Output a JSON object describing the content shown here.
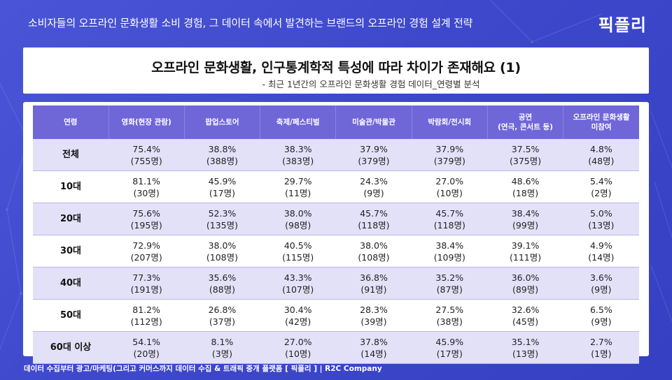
{
  "header": {
    "title": "소비자들의 오프라인 문화생활 소비 경험, 그 데이터 속에서 발견하는 브랜드의 오프라인 경험 설계 전략",
    "logo": "픽플리"
  },
  "slide": {
    "title": "오프라인 문화생활, 인구통계학적 특성에 따라 차이가 존재해요 (1)",
    "subtitle": "- 최근 1년간의 오프라인 문화생활 경험 데이터_연령별 분석"
  },
  "table": {
    "columns": [
      {
        "line1": "연령",
        "line2": ""
      },
      {
        "line1": "영화(현장 관람)",
        "line2": ""
      },
      {
        "line1": "팝업스토어",
        "line2": ""
      },
      {
        "line1": "축제/페스티벌",
        "line2": ""
      },
      {
        "line1": "미술관/박물관",
        "line2": ""
      },
      {
        "line1": "박람회/전시회",
        "line2": ""
      },
      {
        "line1": "공연",
        "line2": "(연극, 콘서트 등)"
      },
      {
        "line1": "오프라인 문화생활",
        "line2": "미참여"
      }
    ],
    "rows": [
      {
        "age": "전체",
        "cells": [
          {
            "pct": "75.4%",
            "cnt": "(755명)"
          },
          {
            "pct": "38.8%",
            "cnt": "(388명)"
          },
          {
            "pct": "38.3%",
            "cnt": "(383명)"
          },
          {
            "pct": "37.9%",
            "cnt": "(379명)"
          },
          {
            "pct": "37.9%",
            "cnt": "(379명)"
          },
          {
            "pct": "37.5%",
            "cnt": "(375명)"
          },
          {
            "pct": "4.8%",
            "cnt": "(48명)"
          }
        ]
      },
      {
        "age": "10대",
        "cells": [
          {
            "pct": "81.1%",
            "cnt": "(30명)"
          },
          {
            "pct": "45.9%",
            "cnt": "(17명)"
          },
          {
            "pct": "29.7%",
            "cnt": "(11명)"
          },
          {
            "pct": "24.3%",
            "cnt": "(9명)"
          },
          {
            "pct": "27.0%",
            "cnt": "(10명)"
          },
          {
            "pct": "48.6%",
            "cnt": "(18명)"
          },
          {
            "pct": "5.4%",
            "cnt": "(2명)"
          }
        ]
      },
      {
        "age": "20대",
        "cells": [
          {
            "pct": "75.6%",
            "cnt": "(195명)"
          },
          {
            "pct": "52.3%",
            "cnt": "(135명)"
          },
          {
            "pct": "38.0%",
            "cnt": "(98명)"
          },
          {
            "pct": "45.7%",
            "cnt": "(118명)"
          },
          {
            "pct": "45.7%",
            "cnt": "(118명)"
          },
          {
            "pct": "38.4%",
            "cnt": "(99명)"
          },
          {
            "pct": "5.0%",
            "cnt": "(13명)"
          }
        ]
      },
      {
        "age": "30대",
        "cells": [
          {
            "pct": "72.9%",
            "cnt": "(207명)"
          },
          {
            "pct": "38.0%",
            "cnt": "(108명)"
          },
          {
            "pct": "40.5%",
            "cnt": "(115명)"
          },
          {
            "pct": "38.0%",
            "cnt": "(108명)"
          },
          {
            "pct": "38.4%",
            "cnt": "(109명)"
          },
          {
            "pct": "39.1%",
            "cnt": "(111명)"
          },
          {
            "pct": "4.9%",
            "cnt": "(14명)"
          }
        ]
      },
      {
        "age": "40대",
        "cells": [
          {
            "pct": "77.3%",
            "cnt": "(191명)"
          },
          {
            "pct": "35.6%",
            "cnt": "(88명)"
          },
          {
            "pct": "43.3%",
            "cnt": "(107명)"
          },
          {
            "pct": "36.8%",
            "cnt": "(91명)"
          },
          {
            "pct": "35.2%",
            "cnt": "(87명)"
          },
          {
            "pct": "36.0%",
            "cnt": "(89명)"
          },
          {
            "pct": "3.6%",
            "cnt": "(9명)"
          }
        ]
      },
      {
        "age": "50대",
        "cells": [
          {
            "pct": "81.2%",
            "cnt": "(112명)"
          },
          {
            "pct": "26.8%",
            "cnt": "(37명)"
          },
          {
            "pct": "30.4%",
            "cnt": "(42명)"
          },
          {
            "pct": "28.3%",
            "cnt": "(39명)"
          },
          {
            "pct": "27.5%",
            "cnt": "(38명)"
          },
          {
            "pct": "32.6%",
            "cnt": "(45명)"
          },
          {
            "pct": "6.5%",
            "cnt": "(9명)"
          }
        ]
      },
      {
        "age": "60대 이상",
        "cells": [
          {
            "pct": "54.1%",
            "cnt": "(20명)"
          },
          {
            "pct": "8.1%",
            "cnt": "(3명)"
          },
          {
            "pct": "27.0%",
            "cnt": "(10명)"
          },
          {
            "pct": "37.8%",
            "cnt": "(14명)"
          },
          {
            "pct": "45.9%",
            "cnt": "(17명)"
          },
          {
            "pct": "35.1%",
            "cnt": "(13명)"
          },
          {
            "pct": "2.7%",
            "cnt": "(1명)"
          }
        ]
      }
    ]
  },
  "footer": {
    "text": "데이터 수집부터 광고/마케팅(그리고 커머스까지 데이터 수집 & 트래픽 중개 플랫폼 [ 픽플리 ]  |  R2C Company"
  },
  "colors": {
    "background": "#4048cc",
    "header_row": "#6f67d8",
    "stripe_row": "#e3e1f8",
    "text": "#222222"
  }
}
